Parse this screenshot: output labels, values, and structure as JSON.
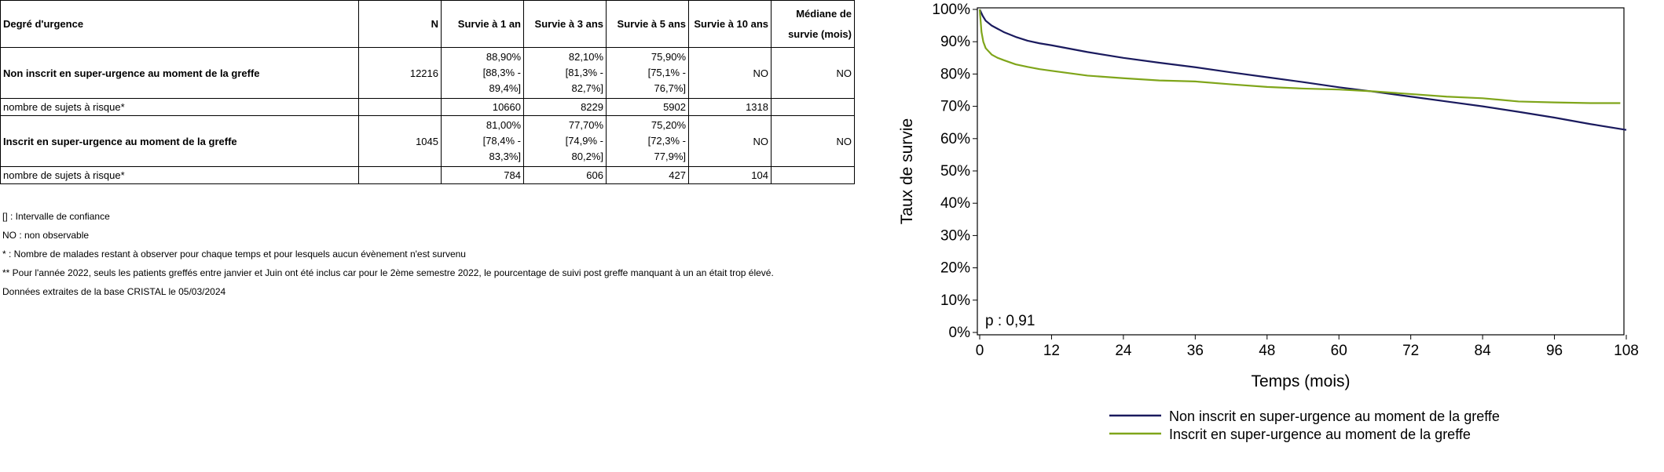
{
  "table": {
    "headers": [
      "Degré d'urgence",
      "N",
      "Survie à 1 an",
      "Survie à 3 ans",
      "Survie à 5 ans",
      "Survie à 10 ans",
      "Médiane de survie (mois)"
    ],
    "rows": [
      {
        "group": "Non inscrit en super-urgence au moment de la greffe",
        "n": "12216",
        "s1": [
          "88,90%",
          "[88,3% -",
          "89,4%]"
        ],
        "s3": [
          "82,10%",
          "[81,3% -",
          "82,7%]"
        ],
        "s5": [
          "75,90%",
          "[75,1% -",
          "76,7%]"
        ],
        "s10": "NO",
        "median": "NO",
        "risk_label": "nombre de sujets à risque*",
        "risk": [
          "10660",
          "8229",
          "5902",
          "1318",
          ""
        ]
      },
      {
        "group": "Inscrit en super-urgence au moment de la greffe",
        "n": "1045",
        "s1": [
          "81,00%",
          "[78,4% -",
          "83,3%]"
        ],
        "s3": [
          "77,70%",
          "[74,9% -",
          "80,2%]"
        ],
        "s5": [
          "75,20%",
          "[72,3% -",
          "77,9%]"
        ],
        "s10": "NO",
        "median": "NO",
        "risk_label": "nombre de sujets à risque*",
        "risk": [
          "784",
          "606",
          "427",
          "104",
          ""
        ]
      }
    ]
  },
  "notes": [
    "[] : Intervalle de confiance",
    "NO : non observable",
    "* : Nombre de malades restant à observer pour chaque temps et pour lesquels aucun évènement n'est survenu",
    "** Pour l'année 2022, seuls les patients greffés entre janvier et Juin ont été inclus car pour le 2ème semestre 2022, le pourcentage de suivi post greffe manquant à un an était trop élevé.",
    "Données extraites de la base CRISTAL le 05/03/2024"
  ],
  "chart_data": {
    "type": "line",
    "xlabel": "Temps (mois)",
    "ylabel": "Taux de survie",
    "xlim": [
      0,
      108
    ],
    "ylim": [
      0,
      100
    ],
    "xticks": [
      0,
      12,
      24,
      36,
      48,
      60,
      72,
      84,
      96,
      108
    ],
    "yticks": [
      0,
      10,
      20,
      30,
      40,
      50,
      60,
      70,
      80,
      90,
      100
    ],
    "ytick_suffix": "%",
    "annotation": "p : 0,91",
    "legend_position": "bottom",
    "grid": false,
    "series": [
      {
        "name": "Non inscrit en super-urgence au moment de la greffe",
        "color": "#1a1a5e",
        "x": [
          0,
          0.5,
          1,
          2,
          3,
          4,
          6,
          8,
          10,
          12,
          18,
          24,
          30,
          36,
          42,
          48,
          54,
          60,
          66,
          72,
          78,
          84,
          90,
          96,
          102,
          108
        ],
        "y": [
          100,
          98,
          96.5,
          95,
          94,
          93,
          91.5,
          90.3,
          89.5,
          88.9,
          86.8,
          85,
          83.5,
          82.1,
          80.5,
          79,
          77.5,
          75.9,
          74.5,
          73,
          71.5,
          70,
          68.3,
          66.5,
          64.5,
          62.7
        ]
      },
      {
        "name": "Inscrit en super-urgence au moment de la greffe",
        "color": "#7fa51a",
        "x": [
          0,
          0.3,
          0.6,
          1,
          1.5,
          2,
          3,
          4,
          6,
          8,
          10,
          12,
          18,
          24,
          30,
          36,
          42,
          48,
          54,
          60,
          66,
          72,
          78,
          84,
          90,
          96,
          102,
          107
        ],
        "y": [
          100,
          93,
          90,
          88,
          87,
          86,
          85,
          84.3,
          83,
          82.2,
          81.5,
          81,
          79.5,
          78.7,
          78,
          77.7,
          76.8,
          76,
          75.5,
          75.2,
          74.6,
          73.8,
          73,
          72.5,
          71.5,
          71.2,
          71,
          71
        ]
      }
    ]
  }
}
